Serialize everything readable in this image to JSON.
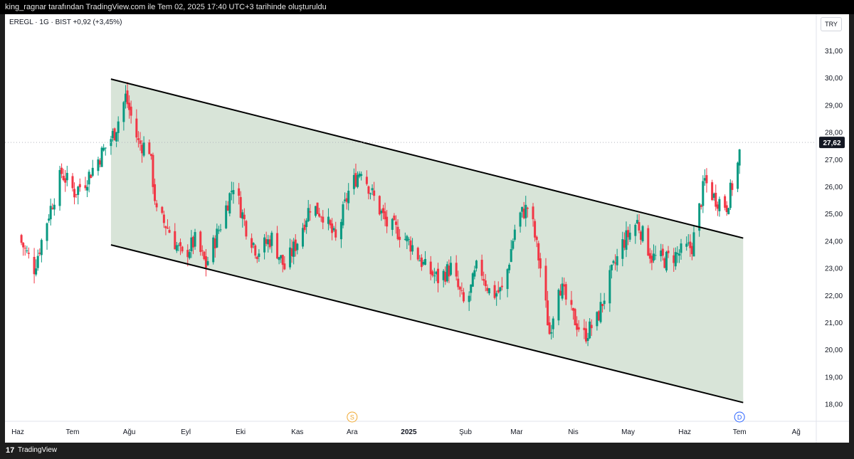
{
  "header": {
    "attribution": "king_ragnar tarafından TradingView.com ile Tem 02, 2025 17:40 UTC+3 tarihinde oluşturuldu"
  },
  "legend": {
    "symbol": "EREGL",
    "interval": "1G",
    "exchange": "BIST",
    "text": "EREGL · 1G · BIST  +0,92 (+3,45%)"
  },
  "currency_label": "TRY",
  "last_price_label": "27,62",
  "footer": {
    "logo_glyph": "17",
    "brand": "TradingView"
  },
  "markers": [
    {
      "letter": "S",
      "color": "#f0a830"
    },
    {
      "letter": "D",
      "color": "#2962ff"
    }
  ],
  "colors": {
    "up": "#089981",
    "down": "#f23645",
    "channel_fill": "#d8e4d8",
    "channel_line": "#000000"
  },
  "chart_data": {
    "type": "candlestick",
    "symbol": "EREGL",
    "interval": "1D",
    "y_axis": {
      "ticks": [
        "18,00",
        "19,00",
        "20,00",
        "21,00",
        "22,00",
        "23,00",
        "24,00",
        "25,00",
        "26,00",
        "27,00",
        "28,00",
        "29,00",
        "30,00",
        "31,00"
      ],
      "range": [
        17.5,
        32.0
      ]
    },
    "x_axis": {
      "ticks": [
        "Haz",
        "Tem",
        "Ağu",
        "Eyl",
        "Eki",
        "Kas",
        "Ara",
        "2025",
        "Şub",
        "Mar",
        "Nis",
        "May",
        "Haz",
        "Tem",
        "Ağ"
      ]
    },
    "last_price": 27.62,
    "change": "+0,92 (+3,45%)",
    "close_path": [
      {
        "t": "2024-06-01",
        "c": 24.2
      },
      {
        "t": "2024-06-10",
        "c": 23.0
      },
      {
        "t": "2024-06-18",
        "c": 25.0
      },
      {
        "t": "2024-06-25",
        "c": 26.5
      },
      {
        "t": "2024-07-02",
        "c": 25.8
      },
      {
        "t": "2024-07-08",
        "c": 26.2
      },
      {
        "t": "2024-07-15",
        "c": 27.0
      },
      {
        "t": "2024-07-24",
        "c": 28.0
      },
      {
        "t": "2024-07-30",
        "c": 29.3
      },
      {
        "t": "2024-08-06",
        "c": 27.6
      },
      {
        "t": "2024-08-12",
        "c": 27.4
      },
      {
        "t": "2024-08-16",
        "c": 25.0
      },
      {
        "t": "2024-08-22",
        "c": 24.5
      },
      {
        "t": "2024-08-30",
        "c": 23.4
      },
      {
        "t": "2024-09-06",
        "c": 24.0
      },
      {
        "t": "2024-09-12",
        "c": 23.1
      },
      {
        "t": "2024-09-20",
        "c": 24.6
      },
      {
        "t": "2024-09-27",
        "c": 26.1
      },
      {
        "t": "2024-10-04",
        "c": 24.5
      },
      {
        "t": "2024-10-10",
        "c": 23.6
      },
      {
        "t": "2024-10-18",
        "c": 24.1
      },
      {
        "t": "2024-10-25",
        "c": 23.0
      },
      {
        "t": "2024-11-01",
        "c": 24.0
      },
      {
        "t": "2024-11-08",
        "c": 25.3
      },
      {
        "t": "2024-11-15",
        "c": 25.0
      },
      {
        "t": "2024-11-22",
        "c": 24.0
      },
      {
        "t": "2024-11-29",
        "c": 25.8
      },
      {
        "t": "2024-12-06",
        "c": 26.7
      },
      {
        "t": "2024-12-12",
        "c": 25.7
      },
      {
        "t": "2024-12-20",
        "c": 24.6
      },
      {
        "t": "2024-12-27",
        "c": 24.3
      },
      {
        "t": "2025-01-03",
        "c": 23.8
      },
      {
        "t": "2025-01-10",
        "c": 23.0
      },
      {
        "t": "2025-01-17",
        "c": 22.6
      },
      {
        "t": "2025-01-24",
        "c": 23.0
      },
      {
        "t": "2025-02-01",
        "c": 21.5
      },
      {
        "t": "2025-02-08",
        "c": 23.2
      },
      {
        "t": "2025-02-15",
        "c": 22.0
      },
      {
        "t": "2025-02-22",
        "c": 22.2
      },
      {
        "t": "2025-03-01",
        "c": 24.8
      },
      {
        "t": "2025-03-08",
        "c": 25.3
      },
      {
        "t": "2025-03-14",
        "c": 23.0
      },
      {
        "t": "2025-03-19",
        "c": 20.6
      },
      {
        "t": "2025-03-24",
        "c": 22.5
      },
      {
        "t": "2025-03-31",
        "c": 21.3
      },
      {
        "t": "2025-04-07",
        "c": 20.5
      },
      {
        "t": "2025-04-14",
        "c": 21.1
      },
      {
        "t": "2025-04-21",
        "c": 22.6
      },
      {
        "t": "2025-04-28",
        "c": 23.9
      },
      {
        "t": "2025-05-06",
        "c": 24.7
      },
      {
        "t": "2025-05-14",
        "c": 23.4
      },
      {
        "t": "2025-05-21",
        "c": 23.3
      },
      {
        "t": "2025-05-28",
        "c": 23.5
      },
      {
        "t": "2025-06-05",
        "c": 23.8
      },
      {
        "t": "2025-06-12",
        "c": 26.2
      },
      {
        "t": "2025-06-17",
        "c": 25.6
      },
      {
        "t": "2025-06-24",
        "c": 25.3
      },
      {
        "t": "2025-06-30",
        "c": 26.8
      },
      {
        "t": "2025-07-02",
        "c": 27.62
      }
    ],
    "channel": {
      "upper": [
        {
          "t": "2024-07-22",
          "v": 29.95
        },
        {
          "t": "2025-07-03",
          "v": 24.1
        }
      ],
      "lower": [
        {
          "t": "2024-07-22",
          "v": 23.85
        },
        {
          "t": "2025-07-03",
          "v": 18.05
        }
      ]
    }
  }
}
